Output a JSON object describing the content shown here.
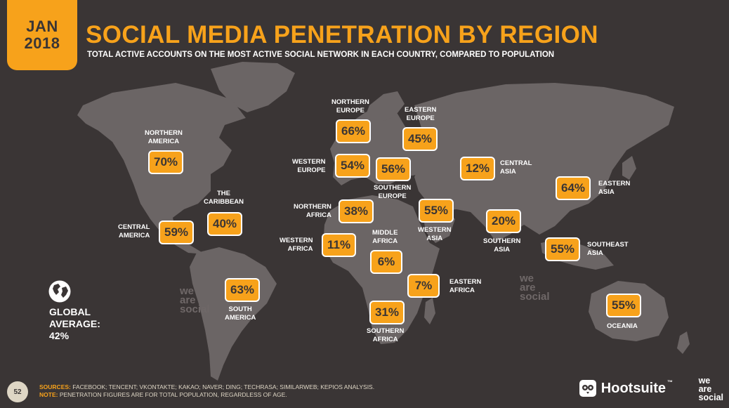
{
  "header": {
    "date_month": "JAN",
    "date_year": "2018",
    "title": "SOCIAL MEDIA PENETRATION BY REGION",
    "subtitle": "TOTAL ACTIVE ACCOUNTS ON THE MOST ACTIVE SOCIAL NETWORK IN EACH COUNTRY, COMPARED TO POPULATION"
  },
  "regions": [
    {
      "name_lines": [
        "NORTHERN",
        "AMERICA"
      ],
      "value": "70%"
    },
    {
      "name_lines": [
        "CENTRAL",
        "AMERICA"
      ],
      "value": "59%"
    },
    {
      "name_lines": [
        "THE",
        "CARIBBEAN"
      ],
      "value": "40%"
    },
    {
      "name_lines": [
        "SOUTH",
        "AMERICA"
      ],
      "value": "63%"
    },
    {
      "name_lines": [
        "NORTHERN",
        "EUROPE"
      ],
      "value": "66%"
    },
    {
      "name_lines": [
        "WESTERN",
        "EUROPE"
      ],
      "value": "54%"
    },
    {
      "name_lines": [
        "SOUTHERN",
        "EUROPE"
      ],
      "value": "56%"
    },
    {
      "name_lines": [
        "EASTERN",
        "EUROPE"
      ],
      "value": "45%"
    },
    {
      "name_lines": [
        "NORTHERN",
        "AFRICA"
      ],
      "value": "38%"
    },
    {
      "name_lines": [
        "WESTERN",
        "AFRICA"
      ],
      "value": "11%"
    },
    {
      "name_lines": [
        "MIDDLE",
        "AFRICA"
      ],
      "value": "6%"
    },
    {
      "name_lines": [
        "EASTERN",
        "AFRICA"
      ],
      "value": "7%"
    },
    {
      "name_lines": [
        "SOUTHERN",
        "AFRICA"
      ],
      "value": "31%"
    },
    {
      "name_lines": [
        "WESTERN",
        "ASIA"
      ],
      "value": "55%"
    },
    {
      "name_lines": [
        "CENTRAL",
        "ASIA"
      ],
      "value": "12%"
    },
    {
      "name_lines": [
        "SOUTHERN",
        "ASIA"
      ],
      "value": "20%"
    },
    {
      "name_lines": [
        "EASTERN",
        "ASIA"
      ],
      "value": "64%"
    },
    {
      "name_lines": [
        "SOUTHEAST",
        "ASIA"
      ],
      "value": "55%"
    },
    {
      "name_lines": [
        "OCEANIA"
      ],
      "value": "55%"
    }
  ],
  "global": {
    "lines": [
      "GLOBAL",
      "AVERAGE:",
      "42%"
    ],
    "icon": "globe-icon"
  },
  "footer": {
    "page_number": "52",
    "sources_label": "SOURCES:",
    "sources_text": "FACEBOOK; TENCENT; VKONTAKTE; KAKAO; NAVER; DING; TECHRASA; SIMILARWEB; KEPIOS ANALYSIS.",
    "note_label": "NOTE:",
    "note_text": "PENETRATION FIGURES ARE FOR TOTAL POPULATION, REGARDLESS OF AGE.",
    "brand": "Hootsuite",
    "brand_mark": "™",
    "brand_icon": "owl-icon",
    "partner_lines": [
      "we",
      "are",
      "social"
    ]
  },
  "watermark_lines": [
    "we",
    "are",
    "social"
  ],
  "colors": {
    "background": "#3a3535",
    "land": "#6b6565",
    "accent": "#f7a21b",
    "text": "#ffffff"
  }
}
